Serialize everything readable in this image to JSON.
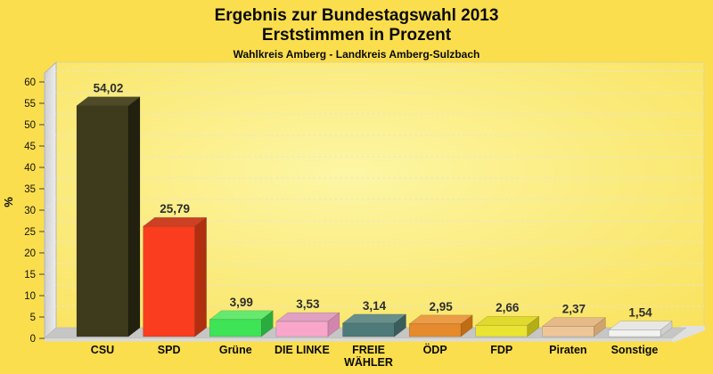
{
  "page": {
    "title_line1": "Ergebnis zur Bundestagswahl 2013",
    "title_line2": "Erststimmen in Prozent",
    "subtitle": "Wahlkreis Amberg - Landkreis Amberg-Sulzbach"
  },
  "colors": {
    "background": "#FBDE4D",
    "plot_inner": "#FDF6A4",
    "plot_outer": "#F9E25C",
    "plot_border": "#E3D78C",
    "wall_light": "#EDEDED",
    "wall_dark": "#CFCFCF",
    "wall_edge": "#B5B5B5",
    "floor_top": "#C6C6C4",
    "floor_front": "#D9D9D7",
    "floor_bevel": "#E0E0DE",
    "gridline": "#E6E3DA",
    "tick": "#444444",
    "tick_label": "#111111",
    "value_label": "#2E2E2E",
    "category_label": "#0A0A0A"
  },
  "chart_data": {
    "type": "bar",
    "style": "3d-column",
    "title": "Ergebnis zur Bundestagswahl 2013",
    "subtitle": "Erststimmen in Prozent",
    "subtitle2": "Wahlkreis Amberg - Landkreis Amberg-Sulzbach",
    "xlabel": "",
    "ylabel": "%",
    "ylim": [
      0,
      60
    ],
    "ytick_step": 5,
    "grid": "horizontal-dashed",
    "legend": "none",
    "decimal_separator": ",",
    "categories": [
      "CSU",
      "SPD",
      "Grüne",
      "DIE LINKE",
      "FREIE WÄHLER",
      "ÖDP",
      "FDP",
      "Piraten",
      "Sonstige"
    ],
    "category_display_lines": [
      [
        "CSU"
      ],
      [
        "SPD"
      ],
      [
        "Grüne"
      ],
      [
        "DIE LINKE"
      ],
      [
        "FREIE",
        "WÄHLER"
      ],
      [
        "ÖDP"
      ],
      [
        "FDP"
      ],
      [
        "Piraten"
      ],
      [
        "Sonstige"
      ]
    ],
    "values": [
      54.02,
      25.79,
      3.99,
      3.53,
      3.14,
      2.95,
      2.66,
      2.37,
      1.54
    ],
    "value_labels": [
      "54,02",
      "25,79",
      "3,99",
      "3,53",
      "3,14",
      "2,95",
      "2,66",
      "2,37",
      "1,54"
    ],
    "bar_colors": [
      {
        "front": "#3E3B1D",
        "top": "#4F4A27",
        "side": "#22200E"
      },
      {
        "front": "#F93D1E",
        "top": "#CC4124",
        "side": "#B02F10"
      },
      {
        "front": "#3FE356",
        "top": "#63EA6F",
        "side": "#2BAC3E"
      },
      {
        "front": "#F9A6CB",
        "top": "#DFA0C2",
        "side": "#D285AD"
      },
      {
        "front": "#4E7B79",
        "top": "#67908D",
        "side": "#3A5D5B"
      },
      {
        "front": "#E68A2E",
        "top": "#EB9C45",
        "side": "#BF6C15"
      },
      {
        "front": "#EAE433",
        "top": "#E0DA2E",
        "side": "#B3AD18"
      },
      {
        "front": "#EFC697",
        "top": "#E5B988",
        "side": "#D0A26C"
      },
      {
        "front": "#F2F2F0",
        "top": "#E7E7E5",
        "side": "#CFCFCC"
      }
    ]
  }
}
